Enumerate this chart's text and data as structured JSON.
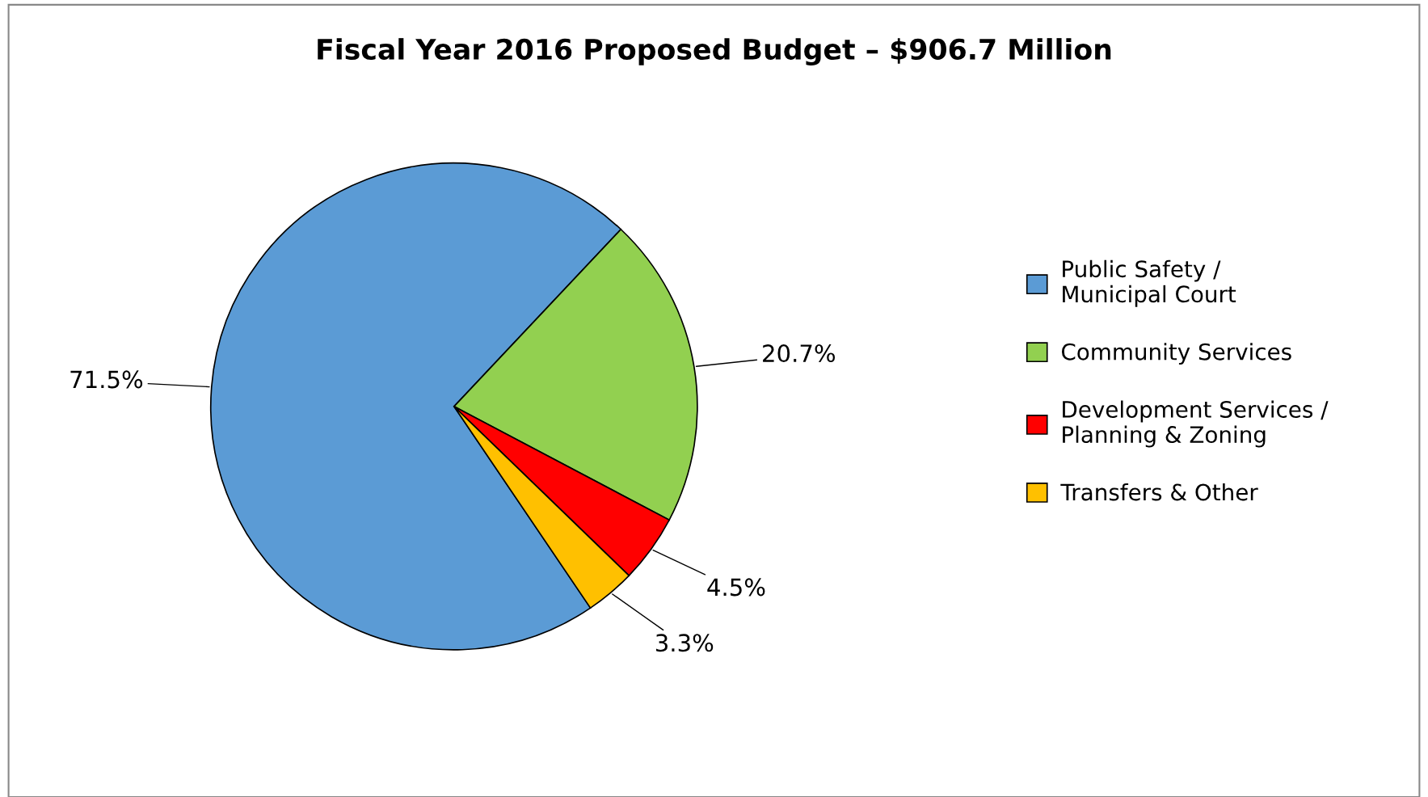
{
  "chart_data": {
    "type": "pie",
    "title": "Fiscal Year 2016 Proposed Budget – $906.7 Million",
    "categories": [
      "Public Safety /\nMunicipal Court",
      "Community Services",
      "Development Services /\nPlanning & Zoning",
      "Transfers & Other"
    ],
    "values": [
      71.5,
      20.7,
      4.5,
      3.3
    ],
    "colors": [
      "#5b9bd5",
      "#92d050",
      "#ff0000",
      "#ffc000"
    ],
    "value_labels": [
      "71.5%",
      "20.7%",
      "4.5%",
      "3.3%"
    ],
    "legend": "right"
  }
}
